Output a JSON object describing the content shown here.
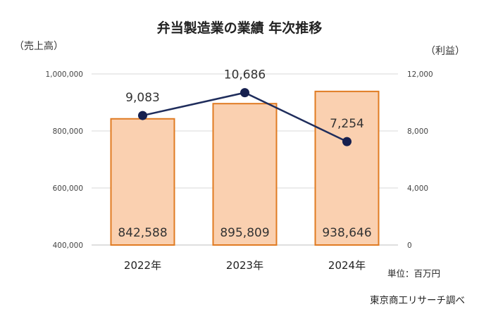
{
  "chart_data": {
    "type": "bar",
    "title": "弁当製造業の業績 年次推移",
    "categories": [
      "2022年",
      "2023年",
      "2024年"
    ],
    "y_left": {
      "label": "（売上高）",
      "ticks": [
        "400,000",
        "600,000",
        "800,000",
        "1,000,000"
      ],
      "ylim": [
        400000,
        1000000
      ]
    },
    "y_right": {
      "label": "（利益）",
      "ticks": [
        "0",
        "4,000",
        "8,000",
        "12,000"
      ],
      "ylim": [
        0,
        12000
      ]
    },
    "series": [
      {
        "name": "売上高",
        "type": "bar",
        "axis": "left",
        "values": [
          842588,
          895809,
          938646
        ],
        "labels": [
          "842,588",
          "895,809",
          "938,646"
        ]
      },
      {
        "name": "利益",
        "type": "line",
        "axis": "right",
        "values": [
          9083,
          10686,
          7254
        ],
        "labels": [
          "9,083",
          "10,686",
          "7,254"
        ]
      }
    ],
    "unit_note": "単位：百万円",
    "source": "東京商工リサーチ調べ",
    "grid": true,
    "colors": {
      "bar_fill": "#FAD0B0",
      "bar_stroke": "#E07B22",
      "line": "#1F2D5C",
      "marker": "#16204F",
      "grid": "#D9D9D9"
    }
  }
}
